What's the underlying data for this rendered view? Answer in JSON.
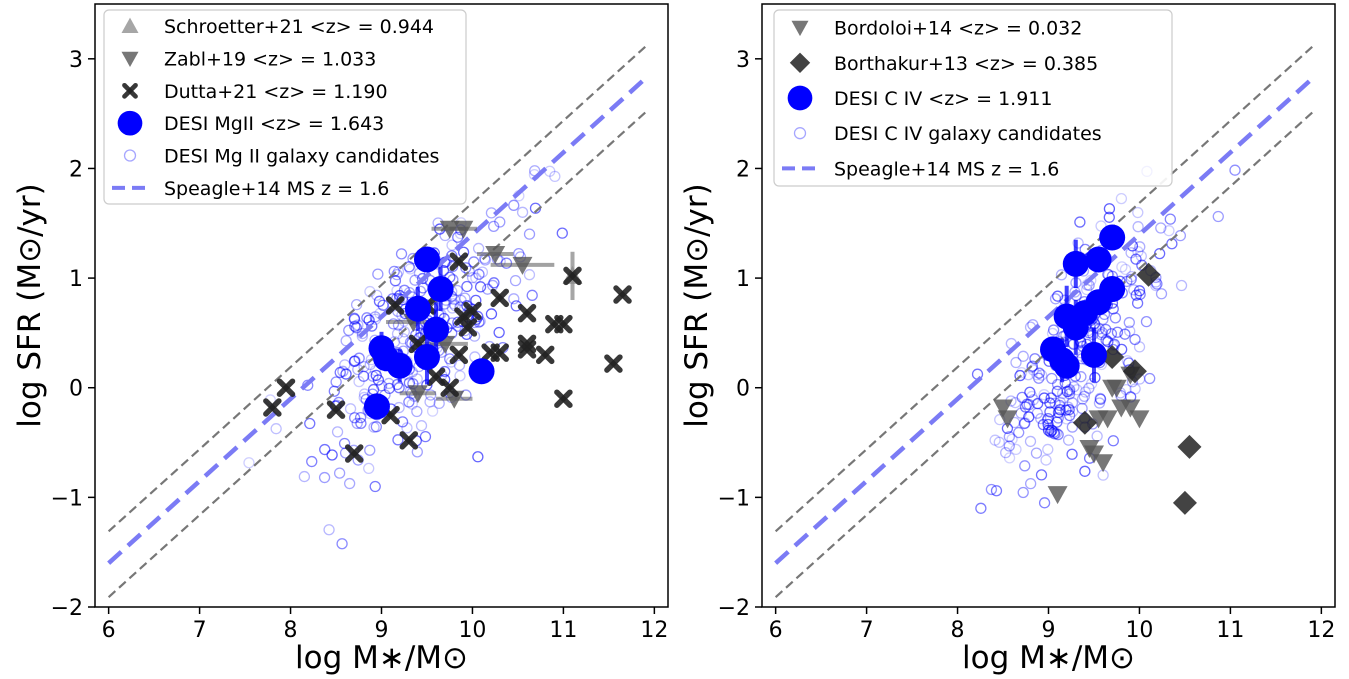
{
  "chart_data": [
    {
      "type": "scatter",
      "xlabel": "log M∗/M⊙",
      "ylabel": "log SFR (M⊙/yr)",
      "xlim": [
        5.85,
        12.15
      ],
      "ylim": [
        -2.0,
        3.5
      ],
      "xticks": [
        "6",
        "7",
        "8",
        "9",
        "10",
        "11",
        "12"
      ],
      "yticks": [
        "−2",
        "−1",
        "0",
        "1",
        "2",
        "3"
      ],
      "grid": false,
      "legend_position": "top-left",
      "reference_lines": {
        "main_sequence": [
          [
            6.0,
            -1.6
          ],
          [
            11.9,
            2.82
          ]
        ],
        "upper_scatter": [
          [
            6.0,
            -1.31
          ],
          [
            11.9,
            3.11
          ]
        ],
        "lower_scatter": [
          [
            6.0,
            -1.91
          ],
          [
            11.9,
            2.51
          ]
        ]
      },
      "series": [
        {
          "name": "Schroetter+21 <z> = 0.944",
          "marker": "triangle-up",
          "color": "#888888",
          "points": [
            {
              "x": 11.1,
              "y": 1.02,
              "err": 0.22
            }
          ]
        },
        {
          "name": "Zabl+19 <z> = 1.033",
          "marker": "triangle-down",
          "color": "#555555",
          "points": [
            {
              "x": 9.75,
              "y": 1.45,
              "xerr": 0.2
            },
            {
              "x": 9.9,
              "y": 1.45,
              "xerr": 0.15
            },
            {
              "x": 10.25,
              "y": 1.22,
              "xerr": 0.2
            },
            {
              "x": 10.55,
              "y": 1.12,
              "xerr": 0.35
            },
            {
              "x": 9.35,
              "y": 0.6,
              "xerr": 0.3
            },
            {
              "x": 9.7,
              "y": 0.4,
              "xerr": 0.25
            },
            {
              "x": 9.4,
              "y": -0.05,
              "xerr": 0.2
            },
            {
              "x": 9.8,
              "y": -0.1,
              "xerr": 0.2
            }
          ]
        },
        {
          "name": "Dutta+21 <z> = 1.190",
          "marker": "x",
          "color": "#222222",
          "points": [
            {
              "x": 7.8,
              "y": -0.18
            },
            {
              "x": 7.95,
              "y": 0.0
            },
            {
              "x": 8.5,
              "y": -0.2
            },
            {
              "x": 8.7,
              "y": -0.6
            },
            {
              "x": 9.1,
              "y": -0.25
            },
            {
              "x": 9.3,
              "y": -0.48
            },
            {
              "x": 9.15,
              "y": 0.75
            },
            {
              "x": 9.5,
              "y": 0.75
            },
            {
              "x": 9.85,
              "y": 1.15
            },
            {
              "x": 9.9,
              "y": 0.65
            },
            {
              "x": 9.95,
              "y": 0.55
            },
            {
              "x": 9.85,
              "y": 0.3
            },
            {
              "x": 10.0,
              "y": 0.7
            },
            {
              "x": 10.2,
              "y": 0.32
            },
            {
              "x": 10.3,
              "y": 0.32
            },
            {
              "x": 10.3,
              "y": 0.82
            },
            {
              "x": 10.6,
              "y": 0.68
            },
            {
              "x": 10.6,
              "y": 0.35
            },
            {
              "x": 10.6,
              "y": 0.4
            },
            {
              "x": 10.8,
              "y": 0.3
            },
            {
              "x": 10.9,
              "y": 0.58
            },
            {
              "x": 11.0,
              "y": 0.58
            },
            {
              "x": 11.0,
              "y": -0.1
            },
            {
              "x": 11.1,
              "y": 1.02
            },
            {
              "x": 11.55,
              "y": 0.22
            },
            {
              "x": 11.65,
              "y": 0.85
            },
            {
              "x": 9.4,
              "y": 0.4
            },
            {
              "x": 9.6,
              "y": 0.1
            },
            {
              "x": 9.75,
              "y": 0.0
            }
          ]
        },
        {
          "name": "DESI MgII <z> = 1.643",
          "marker": "circle-filled",
          "color": "#0000ff",
          "points": [
            {
              "x": 9.5,
              "y": 1.17
            },
            {
              "x": 9.65,
              "y": 0.9,
              "err": 0.2
            },
            {
              "x": 9.4,
              "y": 0.72,
              "err": 0.2
            },
            {
              "x": 9.6,
              "y": 0.53,
              "err": 0.25
            },
            {
              "x": 9.0,
              "y": 0.36,
              "err": 0.15
            },
            {
              "x": 9.05,
              "y": 0.27,
              "err": 0.12
            },
            {
              "x": 9.2,
              "y": 0.2,
              "err": 0.15
            },
            {
              "x": 9.5,
              "y": 0.28,
              "err": 0.25
            },
            {
              "x": 10.1,
              "y": 0.15
            },
            {
              "x": 8.95,
              "y": -0.17
            }
          ]
        }
      ],
      "candidates": {
        "name": "DESI Mg II galaxy candidates",
        "marker": "circle-open",
        "color": "#0000ff",
        "count": 320,
        "x_mean": 9.35,
        "x_sd": 0.55,
        "y_slope": 0.75,
        "y_offset": -6.6,
        "y_sd": 0.45
      },
      "legend": [
        {
          "label": "Schroetter+21 <z> = 0.944",
          "marker": "triangle-up",
          "color": "#888888"
        },
        {
          "label": "Zabl+19 <z> = 1.033",
          "marker": "triangle-down",
          "color": "#555555"
        },
        {
          "label": "Dutta+21 <z> = 1.190",
          "marker": "x",
          "color": "#222222"
        },
        {
          "label": "DESI MgII <z> = 1.643",
          "marker": "circle-filled",
          "color": "#0000ff"
        },
        {
          "label": "DESI Mg II galaxy candidates",
          "marker": "circle-open",
          "color": "#0000ff"
        },
        {
          "label": "Speagle+14 MS z = 1.6",
          "marker": "dashed-line",
          "color": "#7b7bf5"
        }
      ]
    },
    {
      "type": "scatter",
      "xlabel": "log M∗/M⊙",
      "ylabel": "log SFR (M⊙/yr)",
      "xlim": [
        5.85,
        12.15
      ],
      "ylim": [
        -2.0,
        3.5
      ],
      "xticks": [
        "6",
        "7",
        "8",
        "9",
        "10",
        "11",
        "12"
      ],
      "yticks": [
        "−2",
        "−1",
        "0",
        "1",
        "2",
        "3"
      ],
      "grid": false,
      "legend_position": "top-left",
      "reference_lines": {
        "main_sequence": [
          [
            6.0,
            -1.6
          ],
          [
            11.9,
            2.82
          ]
        ],
        "upper_scatter": [
          [
            6.0,
            -1.31
          ],
          [
            11.9,
            3.11
          ]
        ],
        "lower_scatter": [
          [
            6.0,
            -1.91
          ],
          [
            11.9,
            2.51
          ]
        ]
      },
      "series": [
        {
          "name": "Bordoloi+14 <z> = 0.032",
          "marker": "triangle-down",
          "color": "#555555",
          "points": [
            {
              "x": 8.5,
              "y": -0.18
            },
            {
              "x": 8.55,
              "y": -0.28
            },
            {
              "x": 9.1,
              "y": -0.97
            },
            {
              "x": 9.45,
              "y": -0.55
            },
            {
              "x": 9.5,
              "y": -0.6
            },
            {
              "x": 9.6,
              "y": -0.68
            },
            {
              "x": 9.55,
              "y": -0.28
            },
            {
              "x": 9.65,
              "y": -0.28
            },
            {
              "x": 9.7,
              "y": 0.0
            },
            {
              "x": 9.75,
              "y": 0.0
            },
            {
              "x": 9.8,
              "y": -0.18
            },
            {
              "x": 9.9,
              "y": -0.18
            },
            {
              "x": 10.0,
              "y": -0.28
            },
            {
              "x": 9.9,
              "y": 0.12
            }
          ]
        },
        {
          "name": "Borthakur+13 <z> = 0.385",
          "marker": "diamond",
          "color": "#222222",
          "points": [
            {
              "x": 9.4,
              "y": -0.32
            },
            {
              "x": 9.7,
              "y": 0.28
            },
            {
              "x": 9.95,
              "y": 0.15
            },
            {
              "x": 10.1,
              "y": 1.03
            },
            {
              "x": 10.55,
              "y": -0.54
            },
            {
              "x": 10.5,
              "y": -1.05
            }
          ]
        },
        {
          "name": "DESI C IV <z> = 1.911",
          "marker": "circle-filled",
          "color": "#0000ff",
          "points": [
            {
              "x": 9.7,
              "y": 1.37
            },
            {
              "x": 9.55,
              "y": 1.17
            },
            {
              "x": 9.3,
              "y": 1.13,
              "err": 0.22
            },
            {
              "x": 9.7,
              "y": 0.9
            },
            {
              "x": 9.55,
              "y": 0.78
            },
            {
              "x": 9.4,
              "y": 0.68
            },
            {
              "x": 9.2,
              "y": 0.65,
              "err": 0.28
            },
            {
              "x": 9.3,
              "y": 0.55,
              "err": 0.25
            },
            {
              "x": 9.05,
              "y": 0.35
            },
            {
              "x": 9.15,
              "y": 0.25,
              "err": 0.2
            },
            {
              "x": 9.2,
              "y": 0.2
            },
            {
              "x": 9.5,
              "y": 0.3,
              "err": 0.25
            }
          ]
        }
      ],
      "candidates": {
        "name": "DESI C IV galaxy candidates",
        "marker": "circle-open",
        "color": "#0000ff",
        "count": 300,
        "x_mean": 9.35,
        "x_sd": 0.5,
        "y_slope": 0.8,
        "y_offset": -7.2,
        "y_sd": 0.42
      },
      "legend": [
        {
          "label": "Bordoloi+14 <z> = 0.032",
          "marker": "triangle-down",
          "color": "#555555"
        },
        {
          "label": "Borthakur+13 <z> = 0.385",
          "marker": "diamond",
          "color": "#222222"
        },
        {
          "label": "DESI C IV <z> = 1.911",
          "marker": "circle-filled",
          "color": "#0000ff"
        },
        {
          "label": "DESI C IV galaxy candidates",
          "marker": "circle-open",
          "color": "#0000ff"
        },
        {
          "label": "Speagle+14 MS z = 1.6",
          "marker": "dashed-line",
          "color": "#7b7bf5"
        }
      ]
    }
  ]
}
